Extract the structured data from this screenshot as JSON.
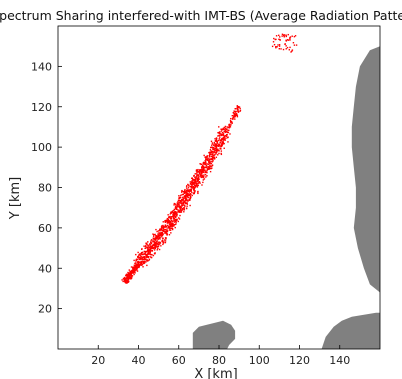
{
  "chart_data": {
    "type": "scatter",
    "title": "Spectrum Sharing interfered-with IMT-BS (Average Radiation Pattern)",
    "xlabel": "X [km]",
    "ylabel": "Y [km]",
    "xlim": [
      0,
      160
    ],
    "ylim": [
      0,
      160
    ],
    "xticks": [
      20,
      40,
      60,
      80,
      100,
      120,
      140
    ],
    "yticks": [
      20,
      40,
      60,
      80,
      100,
      120,
      140
    ],
    "grid": false,
    "colors": {
      "interference": "#ff0000",
      "terrain": "#808080"
    },
    "series": [
      {
        "kind": "interference-cluster",
        "band": [
          [
            33,
            33
          ],
          [
            36,
            37
          ],
          [
            40,
            42
          ],
          [
            44,
            47
          ],
          [
            48,
            52
          ],
          [
            52,
            58
          ],
          [
            56,
            63
          ],
          [
            60,
            70
          ],
          [
            64,
            76
          ],
          [
            68,
            82
          ],
          [
            72,
            88
          ],
          [
            76,
            95
          ],
          [
            80,
            102
          ],
          [
            84,
            109
          ],
          [
            88,
            116
          ],
          [
            90,
            120
          ]
        ],
        "scatter_x_center": [
          108,
          118
        ],
        "scatter_y_center": [
          143,
          156
        ]
      }
    ],
    "terrain_regions": [
      {
        "name": "east-terrain",
        "boundary": [
          [
            160,
            150
          ],
          [
            155,
            148
          ],
          [
            150,
            140
          ],
          [
            148,
            130
          ],
          [
            147,
            120
          ],
          [
            146,
            110
          ],
          [
            146,
            100
          ],
          [
            147,
            90
          ],
          [
            148,
            80
          ],
          [
            148,
            70
          ],
          [
            147,
            60
          ],
          [
            149,
            50
          ],
          [
            152,
            40
          ],
          [
            155,
            32
          ],
          [
            160,
            28
          ]
        ]
      },
      {
        "name": "south-bump-terrain",
        "boundary": [
          [
            67,
            0
          ],
          [
            67,
            8
          ],
          [
            70,
            11
          ],
          [
            74,
            12
          ],
          [
            78,
            13
          ],
          [
            82,
            14
          ],
          [
            86,
            12
          ],
          [
            88,
            9
          ],
          [
            88,
            5
          ],
          [
            85,
            2
          ],
          [
            84,
            0
          ]
        ]
      },
      {
        "name": "southeast-terrain",
        "boundary": [
          [
            131,
            0
          ],
          [
            133,
            6
          ],
          [
            137,
            11
          ],
          [
            141,
            14
          ],
          [
            146,
            16
          ],
          [
            152,
            17
          ],
          [
            158,
            18
          ],
          [
            160,
            18
          ],
          [
            160,
            0
          ]
        ]
      }
    ]
  }
}
